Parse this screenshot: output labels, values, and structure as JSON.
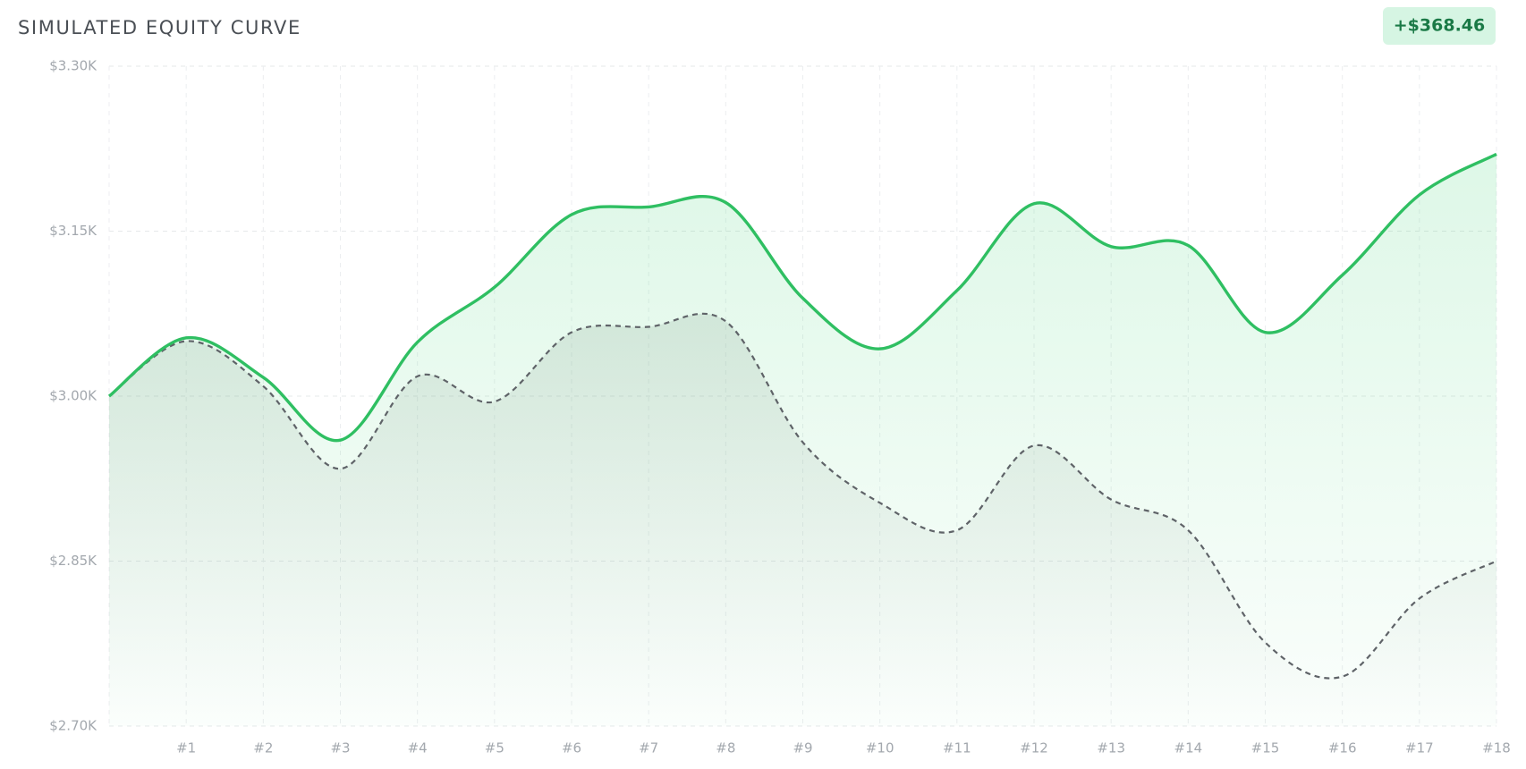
{
  "chart_data": {
    "type": "line",
    "title": "SIMULATED EQUITY CURVE",
    "badge": "+$368.46",
    "categories": [
      null,
      "#1",
      "#2",
      "#3",
      "#4",
      "#5",
      "#6",
      "#7",
      "#8",
      "#9",
      "#10",
      "#11",
      "#12",
      "#13",
      "#14",
      "#15",
      "#16",
      "#17",
      "#18"
    ],
    "series": [
      {
        "color": "#2fbf62",
        "dashed": false,
        "fill": "#2fd06a",
        "values": [
          3000,
          3053,
          3017,
          2960,
          3049,
          3099,
          3165,
          3172,
          3176,
          3089,
          3043,
          3096,
          3175,
          3136,
          3137,
          3058,
          3110,
          3183,
          3220
        ]
      },
      {
        "color": "#5f6368",
        "dashed": true,
        "fill": "#9aa39d",
        "values": [
          3000,
          3050,
          3009,
          2934,
          3018,
          2995,
          3058,
          3063,
          3068,
          2958,
          2903,
          2878,
          2955,
          2906,
          2878,
          2776,
          2745,
          2816,
          2850
        ]
      }
    ],
    "ylim": [
      2700,
      3300
    ],
    "yticks": [
      {
        "value": 2700,
        "label": "$2.70K"
      },
      {
        "value": 2850,
        "label": "$2.85K"
      },
      {
        "value": 3000,
        "label": "$3.00K"
      },
      {
        "value": 3150,
        "label": "$3.15K"
      },
      {
        "value": 3300,
        "label": "$3.30K"
      }
    ],
    "grid": true
  }
}
